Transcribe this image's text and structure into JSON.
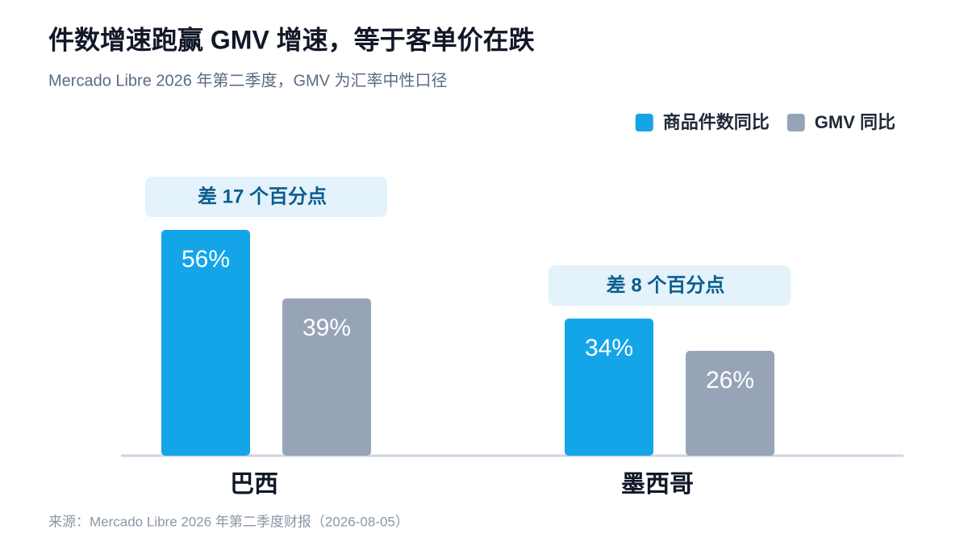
{
  "chart_data": {
    "type": "bar",
    "title": "件数增速跑赢 GMV 增速，等于客单价在跌",
    "subtitle": "Mercado Libre 2026 年第二季度，GMV 为汇率中性口径",
    "categories": [
      "巴西",
      "墨西哥"
    ],
    "series": [
      {
        "name": "商品件数同比",
        "color": "#13a5e8",
        "values": [
          56,
          34
        ],
        "value_labels": [
          "56%",
          "34%"
        ]
      },
      {
        "name": "GMV 同比",
        "color": "#97a4b8",
        "values": [
          39,
          26
        ],
        "value_labels": [
          "39%",
          "26%"
        ]
      }
    ],
    "annotations": [
      "差 17 个百分点",
      "差 8 个百分点"
    ],
    "ylim": [
      0,
      70
    ],
    "legend": "top-right",
    "source": "来源：Mercado Libre 2026 年第二季度财报（2026-08-05）"
  }
}
